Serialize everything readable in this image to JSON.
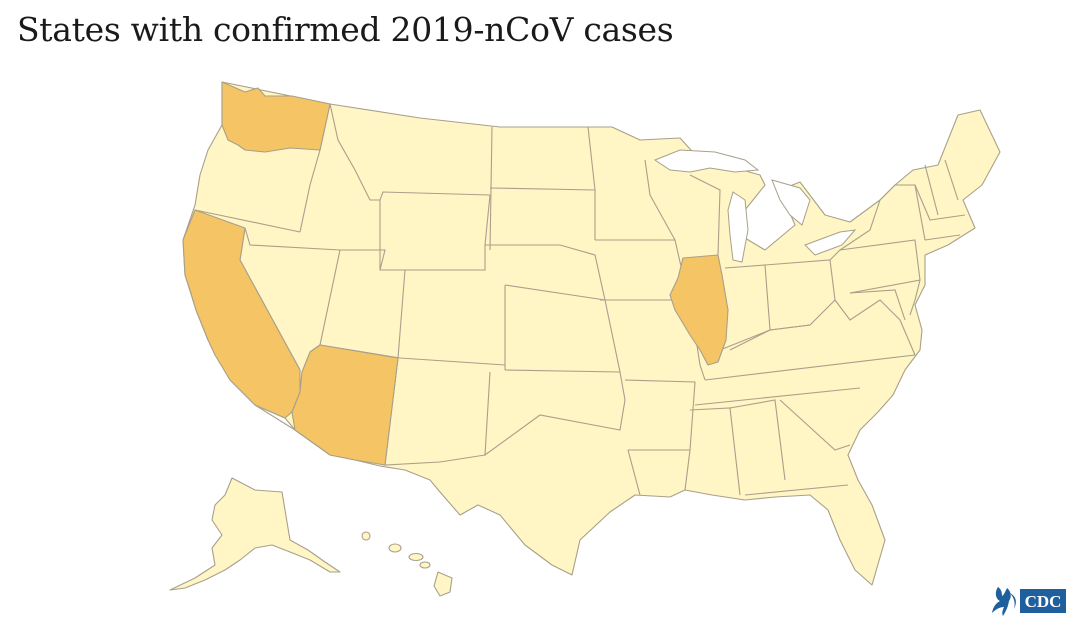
{
  "title": "States with confirmed 2019-nCoV cases",
  "colors": {
    "no_case": "#fff5c5",
    "confirmed": "#f5c465",
    "border": "#a8a08a",
    "logo_blue": "#1f5f9e"
  },
  "confirmed_states": [
    "Washington",
    "California",
    "Arizona",
    "Illinois"
  ],
  "logo": {
    "text": "CDC",
    "icon": "hhs-eagle-icon"
  }
}
